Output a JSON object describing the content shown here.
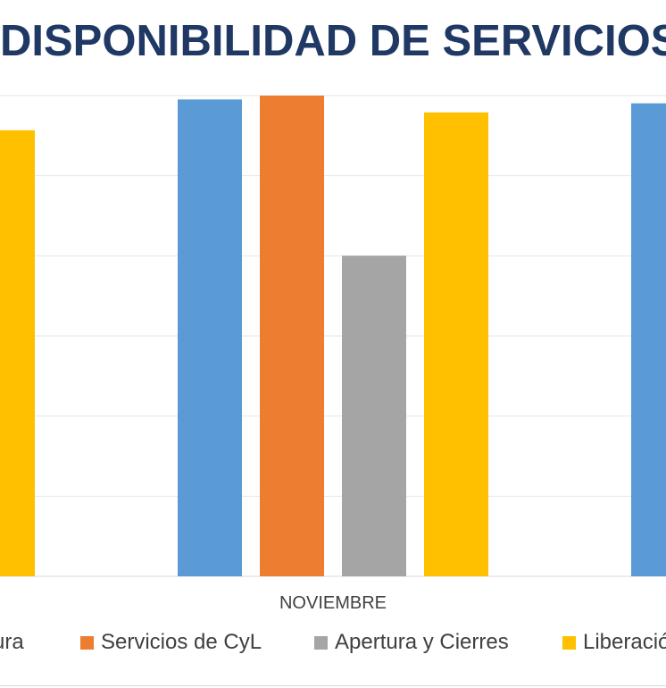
{
  "chart_data": {
    "type": "bar",
    "title": "DISPONIBILIDAD DE SERVICIOS",
    "categories": [
      "NOVIEMBRE"
    ],
    "series": [
      {
        "name": "Infraestructura",
        "legend_visible": "ura",
        "color": "#5b9bd5",
        "values": [
          99.2
        ]
      },
      {
        "name": "Servicios de CyL",
        "legend_visible": "Servicios de CyL",
        "color": "#ed7d31",
        "values": [
          100.0
        ]
      },
      {
        "name": "Apertura y Cierres",
        "legend_visible": "Apertura y Cierres",
        "color": "#a5a5a5",
        "values": [
          66.7
        ]
      },
      {
        "name": "Liberación",
        "legend_visible": "Liberació",
        "color": "#ffc000",
        "values": [
          96.5
        ]
      }
    ],
    "offscreen_left_bar": {
      "series": "Liberación",
      "value": 92.8
    },
    "offscreen_right_bar": {
      "series": "Infraestructura",
      "value": 98.4
    },
    "ylim": [
      0,
      100
    ],
    "grid": true,
    "legend_position": "bottom",
    "xlabel": "",
    "ylabel": ""
  }
}
